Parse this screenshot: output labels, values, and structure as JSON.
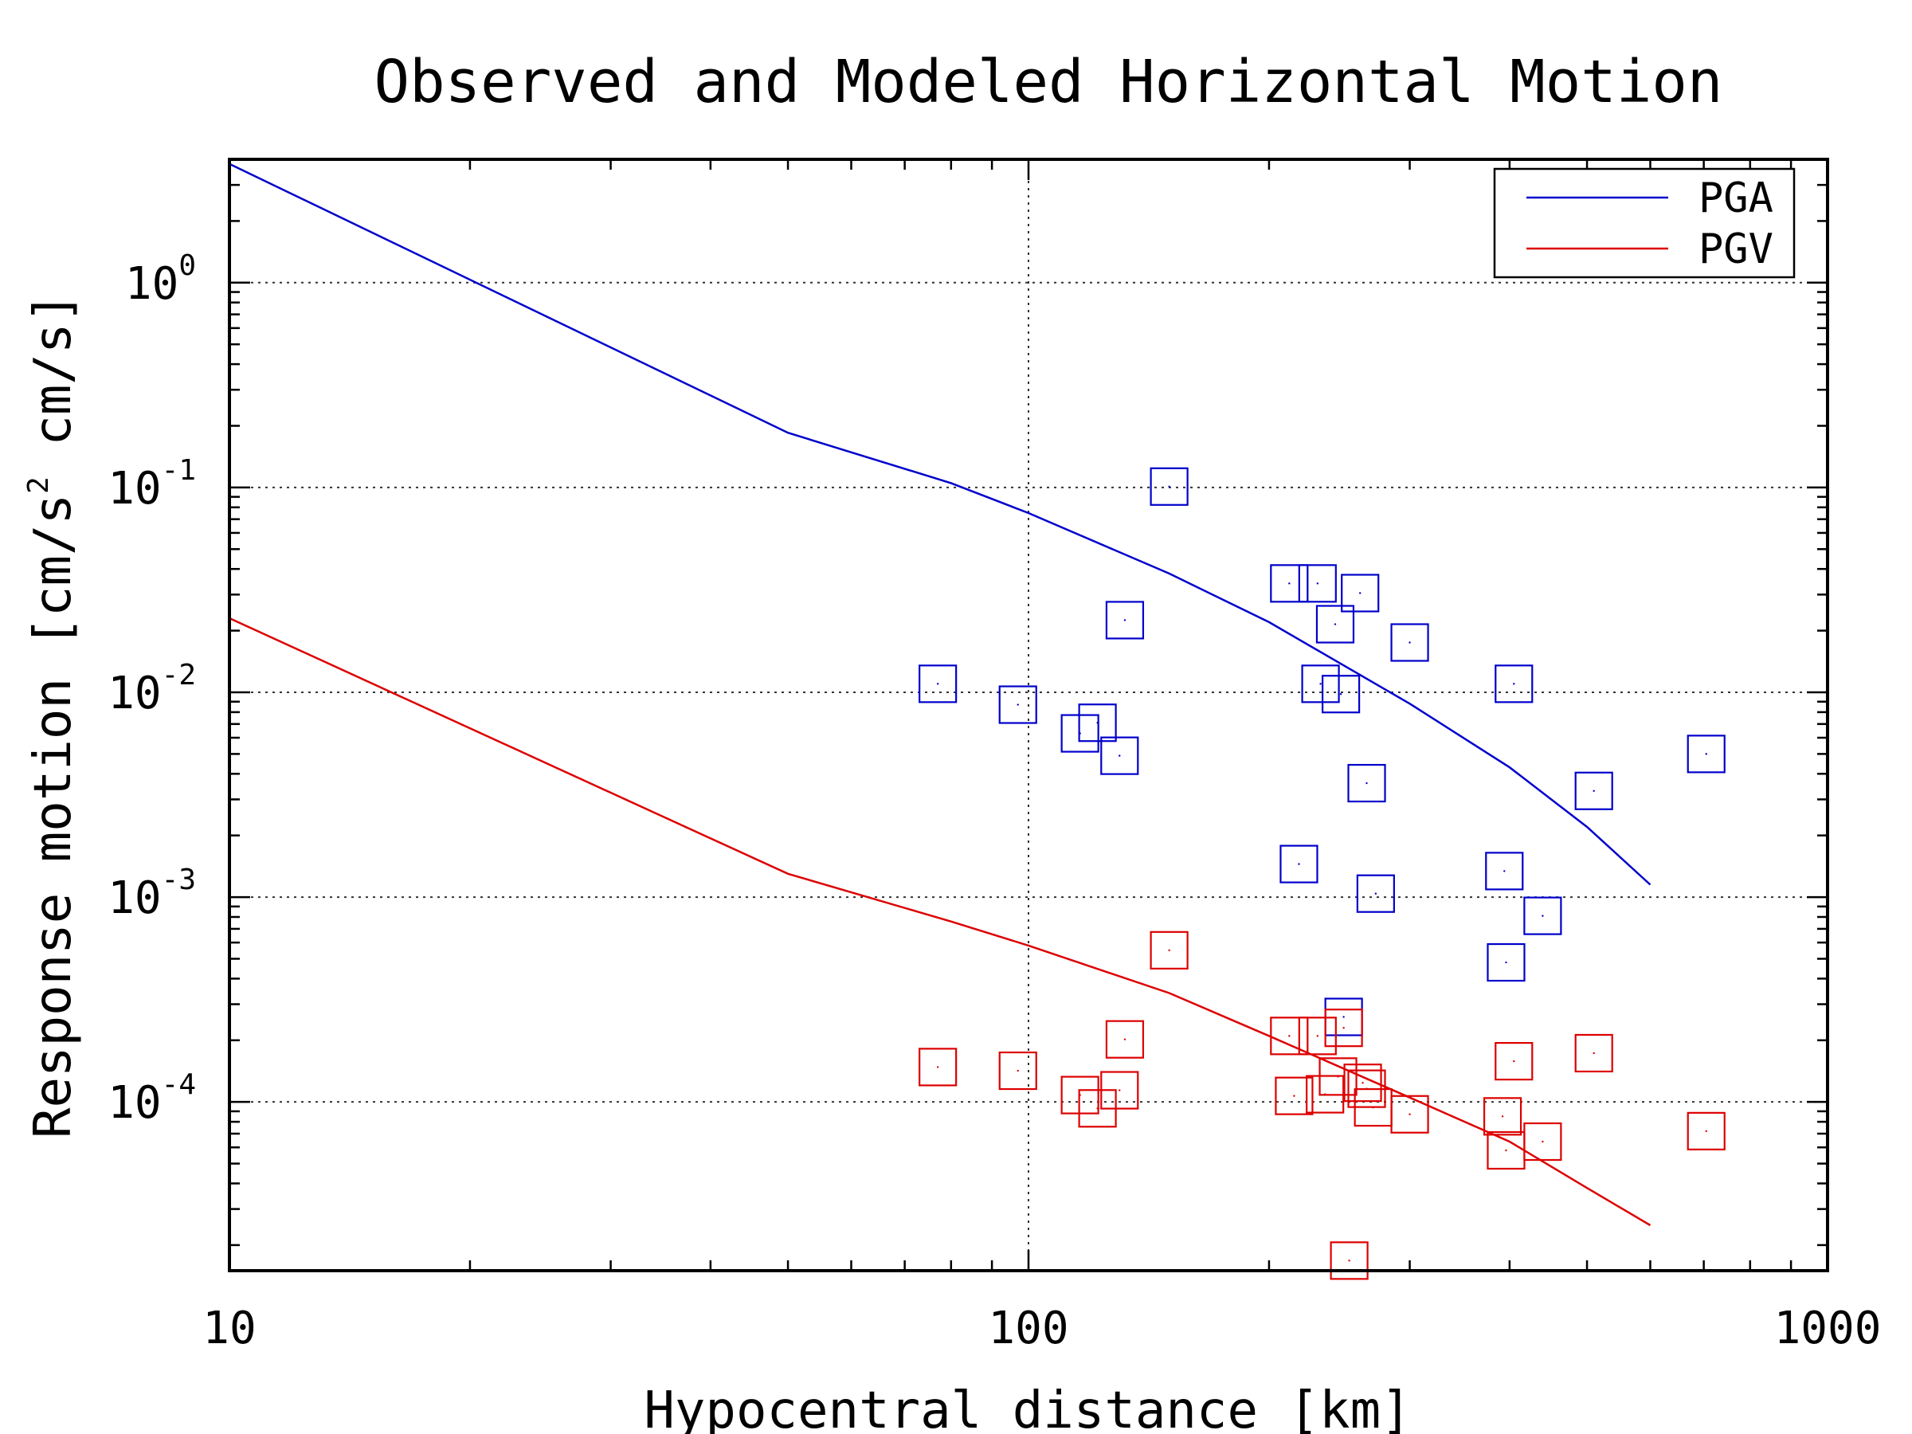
{
  "chart_data": {
    "type": "scatter",
    "title": "Observed and Modeled Horizontal Motion",
    "xlabel": "Hypocentral distance [km]",
    "ylabel_parts": [
      "Response motion [cm/s",
      "2",
      " cm/s]"
    ],
    "xscale": "log",
    "yscale": "log",
    "xlim": [
      10,
      1000
    ],
    "ylim": [
      1.5e-05,
      4
    ],
    "x_tick_labels": [
      {
        "value": 10,
        "text": "10"
      },
      {
        "value": 100,
        "text": "100"
      },
      {
        "value": 1000,
        "text": "1000"
      }
    ],
    "y_tick_labels": [
      {
        "value": 1,
        "base": "10",
        "exp": "0"
      },
      {
        "value": 0.1,
        "base": "10",
        "exp": "-1"
      },
      {
        "value": 0.01,
        "base": "10",
        "exp": "-2"
      },
      {
        "value": 0.001,
        "base": "10",
        "exp": "-3"
      },
      {
        "value": 0.0001,
        "base": "10",
        "exp": "-4"
      }
    ],
    "grid": "dotted major gridlines",
    "legend": {
      "placement": "top-right",
      "entries": [
        {
          "name": "PGA",
          "color": "#0000cc"
        },
        {
          "name": "PGV",
          "color": "#dd0000"
        }
      ]
    },
    "series": [
      {
        "name": "PGA",
        "kind": "line",
        "color": "#0000cc",
        "x": [
          10,
          50,
          80,
          100,
          150,
          200,
          300,
          400,
          500,
          600
        ],
        "y": [
          3.8,
          0.185,
          0.105,
          0.075,
          0.038,
          0.022,
          0.0088,
          0.0043,
          0.0022,
          0.00115
        ]
      },
      {
        "name": "PGV",
        "kind": "line",
        "color": "#dd0000",
        "x": [
          10,
          50,
          80,
          100,
          150,
          200,
          300,
          400,
          500,
          600
        ],
        "y": [
          0.023,
          0.0013,
          0.00076,
          0.00058,
          0.00034,
          0.00021,
          0.000105,
          6.4e-05,
          3.8e-05,
          2.5e-05
        ]
      },
      {
        "name": "PGA observed",
        "kind": "markers",
        "color": "#0000cc",
        "x": [
          77,
          97,
          116,
          122,
          130,
          132,
          150,
          212,
          218,
          230,
          232,
          242,
          246,
          248,
          260,
          265,
          272,
          300,
          394,
          396,
          405,
          440,
          510,
          705
        ],
        "y": [
          0.011,
          0.0087,
          0.0063,
          0.0071,
          0.0049,
          0.0225,
          0.101,
          0.034,
          0.00145,
          0.034,
          0.011,
          0.0215,
          0.0098,
          0.00026,
          0.0305,
          0.0036,
          0.00104,
          0.0175,
          0.00134,
          0.00048,
          0.011,
          0.00081,
          0.0033,
          0.005
        ]
      },
      {
        "name": "PGV observed",
        "kind": "markers",
        "color": "#dd0000",
        "x": [
          77,
          97,
          116,
          122,
          130,
          132,
          150,
          212,
          215,
          230,
          235,
          244,
          248,
          252,
          262,
          265,
          270,
          300,
          392,
          396,
          405,
          440,
          510,
          705
        ],
        "y": [
          0.000148,
          0.000142,
          0.000108,
          9.3e-05,
          0.000114,
          0.000202,
          0.00055,
          0.00021,
          0.000107,
          0.00021,
          0.000109,
          0.000133,
          0.00023,
          1.68e-05,
          0.000124,
          0.000116,
          9.4e-05,
          8.7e-05,
          8.5e-05,
          5.8e-05,
          0.000158,
          6.4e-05,
          0.000173,
          7.2e-05
        ]
      }
    ]
  }
}
